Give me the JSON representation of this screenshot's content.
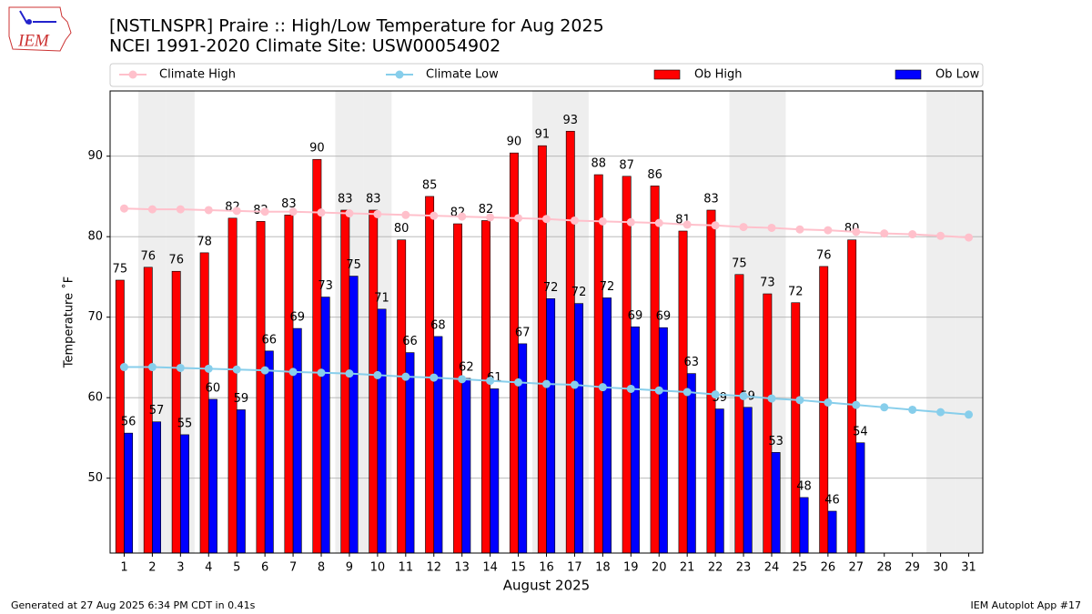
{
  "header": {
    "logo_text": "IEM",
    "title": "[NSTLNSPR] Praire :: High/Low Temperature for Aug 2025",
    "subtitle": "NCEI 1991-2020 Climate Site: USW00054902"
  },
  "footer": {
    "left": "Generated at 27 Aug 2025 6:34 PM CDT in 0.41s",
    "right": "IEM Autoplot App #17"
  },
  "chart_data": {
    "type": "bar",
    "xlabel": "August 2025",
    "ylabel": "Temperature ˚F",
    "categories": [
      "1",
      "2",
      "3",
      "4",
      "5",
      "6",
      "7",
      "8",
      "9",
      "10",
      "11",
      "12",
      "13",
      "14",
      "15",
      "16",
      "17",
      "18",
      "19",
      "20",
      "21",
      "22",
      "23",
      "24",
      "25",
      "26",
      "27",
      "28",
      "29",
      "30",
      "31"
    ],
    "shaded_categories": [
      "2",
      "3",
      "9",
      "10",
      "16",
      "17",
      "23",
      "24",
      "30",
      "31"
    ],
    "shade_color": "#eeeeee",
    "ylim": [
      40.7,
      98.1
    ],
    "yticks": [
      50,
      60,
      70,
      80,
      90
    ],
    "grid": true,
    "legend": "top",
    "series": [
      {
        "name": "Climate High",
        "type": "line",
        "color": "#ffc0cb",
        "values": [
          83.5,
          83.4,
          83.4,
          83.3,
          83.2,
          83.1,
          83.1,
          83.0,
          82.9,
          82.8,
          82.7,
          82.6,
          82.5,
          82.4,
          82.3,
          82.2,
          82.0,
          81.9,
          81.8,
          81.7,
          81.5,
          81.4,
          81.2,
          81.1,
          80.9,
          80.8,
          80.6,
          80.4,
          80.3,
          80.1,
          79.9
        ]
      },
      {
        "name": "Climate Low",
        "type": "line",
        "color": "#87ceeb",
        "values": [
          63.8,
          63.8,
          63.7,
          63.6,
          63.5,
          63.4,
          63.2,
          63.1,
          63.0,
          62.8,
          62.6,
          62.5,
          62.3,
          62.1,
          61.9,
          61.7,
          61.6,
          61.3,
          61.1,
          60.9,
          60.7,
          60.4,
          60.2,
          59.9,
          59.7,
          59.4,
          59.1,
          58.8,
          58.5,
          58.2,
          57.9
        ]
      },
      {
        "name": "Ob High",
        "type": "bar",
        "color": "#ff0000",
        "values": [
          74.6,
          76.2,
          75.7,
          78.0,
          82.3,
          81.9,
          82.7,
          89.6,
          83.3,
          83.3,
          79.6,
          85.0,
          81.6,
          82.0,
          90.4,
          91.3,
          93.1,
          87.7,
          87.5,
          86.3,
          80.7,
          83.3,
          75.3,
          72.9,
          71.8,
          76.3,
          79.6,
          null,
          null,
          null,
          null
        ],
        "value_labels": [
          "75",
          "76",
          "76",
          "78",
          "82",
          "82",
          "83",
          "90",
          "83",
          "83",
          "80",
          "85",
          "82",
          "82",
          "90",
          "91",
          "93",
          "88",
          "87",
          "86",
          "81",
          "83",
          "75",
          "73",
          "72",
          "76",
          "80",
          null,
          null,
          null,
          null
        ]
      },
      {
        "name": "Ob Low",
        "type": "bar",
        "color": "#0000ff",
        "values": [
          55.6,
          57.0,
          55.4,
          59.8,
          58.5,
          65.8,
          68.6,
          72.5,
          75.1,
          71.0,
          65.6,
          67.6,
          62.4,
          61.1,
          66.7,
          72.3,
          71.7,
          72.4,
          68.8,
          68.7,
          63.0,
          58.6,
          58.8,
          53.2,
          47.6,
          45.9,
          54.4,
          null,
          null,
          null,
          null
        ],
        "value_labels": [
          "56",
          "57",
          "55",
          "60",
          "59",
          "66",
          "69",
          "73",
          "75",
          "71",
          "66",
          "68",
          "62",
          "61",
          "67",
          "72",
          "72",
          "72",
          "69",
          "69",
          "63",
          "59",
          "59",
          "53",
          "48",
          "46",
          "54",
          null,
          null,
          null,
          null
        ]
      }
    ]
  }
}
